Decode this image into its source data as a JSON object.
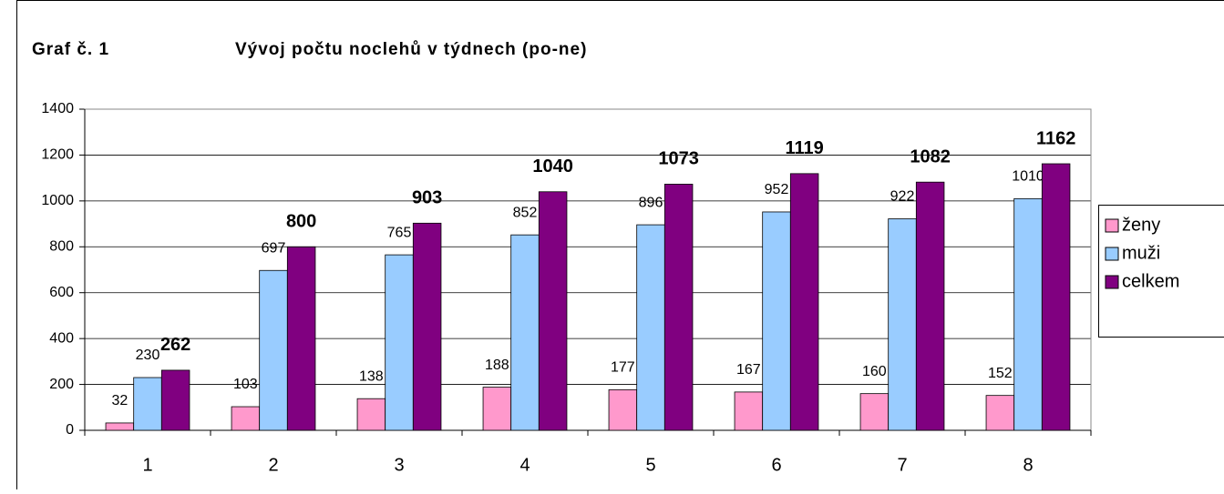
{
  "figure_label": "Graf č. 1",
  "chart_data": {
    "type": "bar",
    "title": "Vývoj počtu noclehů v týdnech (po-ne)",
    "categories": [
      "1",
      "2",
      "3",
      "4",
      "5",
      "6",
      "7",
      "8"
    ],
    "series": [
      {
        "name": "ženy",
        "color": "#ff99cc",
        "values": [
          32,
          103,
          138,
          188,
          177,
          167,
          160,
          152
        ]
      },
      {
        "name": "muži",
        "color": "#99ccff",
        "values": [
          230,
          697,
          765,
          852,
          896,
          952,
          922,
          1010
        ]
      },
      {
        "name": "celkem",
        "color": "#800080",
        "label_weight": "bold",
        "values": [
          262,
          800,
          903,
          1040,
          1073,
          1119,
          1082,
          1162
        ]
      }
    ],
    "ylim": [
      0,
      1400
    ],
    "yticks": [
      0,
      200,
      400,
      600,
      800,
      1000,
      1200,
      1400
    ],
    "grid": true,
    "legend": "right"
  }
}
